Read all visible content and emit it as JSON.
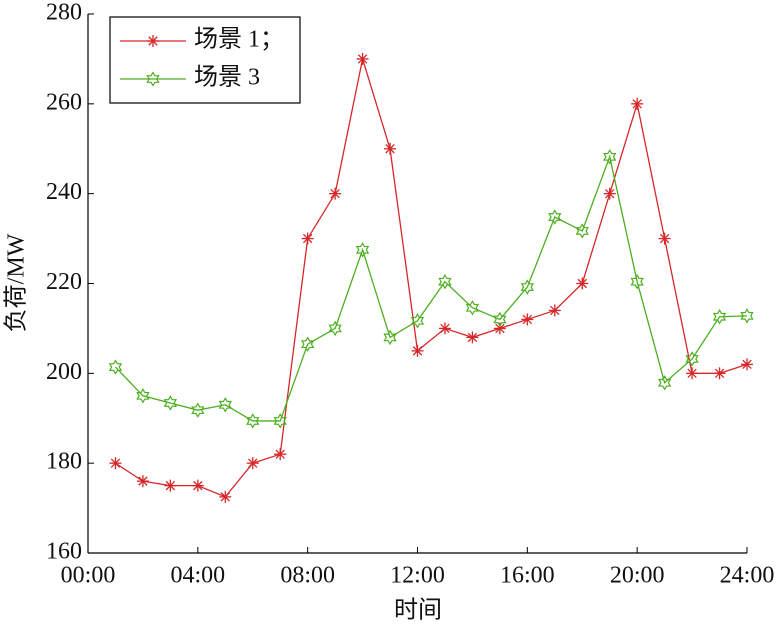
{
  "chart_data": {
    "type": "line",
    "x_label": "时间",
    "y_label": "负荷/MW",
    "x": [
      1,
      2,
      3,
      4,
      5,
      6,
      7,
      8,
      9,
      10,
      11,
      12,
      13,
      14,
      15,
      16,
      17,
      18,
      19,
      20,
      21,
      22,
      23,
      24
    ],
    "series": [
      {
        "name": "场景 1；",
        "color": "#d62728",
        "marker": "asterisk",
        "values": [
          180,
          176,
          175,
          175,
          172.5,
          180,
          182,
          230,
          240,
          270,
          250,
          205,
          210,
          208,
          210,
          212,
          214,
          220,
          240,
          260,
          230,
          200,
          200,
          202
        ]
      },
      {
        "name": "场景 3",
        "color": "#4caf1f",
        "marker": "star",
        "values": [
          201.4,
          195,
          193.4,
          191.8,
          193,
          189.4,
          189.4,
          206.5,
          210,
          227.5,
          208,
          211.7,
          220.4,
          214.6,
          212,
          219.2,
          234.8,
          231.7,
          248.2,
          220.4,
          197.9,
          203.2,
          212.6,
          212.8
        ]
      }
    ],
    "xlim": [
      0,
      24
    ],
    "xticks": [
      {
        "value": 0,
        "label": "00:00"
      },
      {
        "value": 4,
        "label": "04:00"
      },
      {
        "value": 8,
        "label": "08:00"
      },
      {
        "value": 12,
        "label": "12:00"
      },
      {
        "value": 16,
        "label": "16:00"
      },
      {
        "value": 20,
        "label": "20:00"
      },
      {
        "value": 24,
        "label": "24:00"
      }
    ],
    "ylim": [
      160,
      280
    ],
    "yticks": [
      160,
      180,
      200,
      220,
      240,
      260,
      280
    ],
    "legend": "upper left"
  }
}
